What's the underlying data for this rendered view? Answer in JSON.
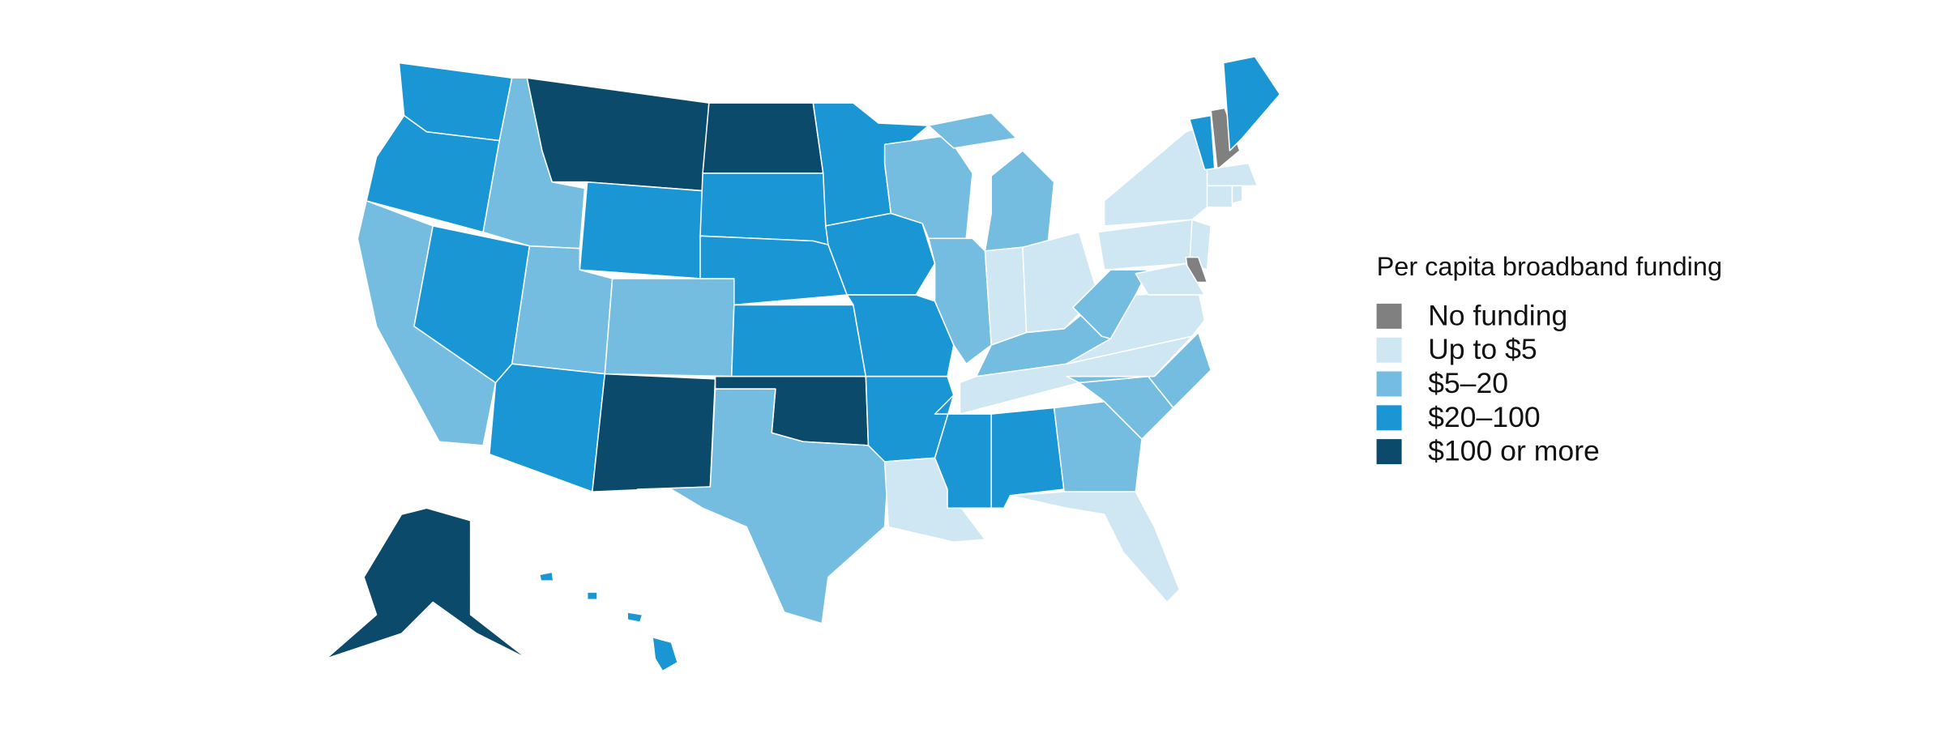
{
  "legend": {
    "title": "Per capita broadband funding",
    "items": [
      {
        "label": "No funding",
        "color": "#808080"
      },
      {
        "label": "Up to $5",
        "color": "#cfe6f3"
      },
      {
        "label": "$5–20",
        "color": "#74bde0"
      },
      {
        "label": "$20–100",
        "color": "#1996d3"
      },
      {
        "label": "$100 or more",
        "color": "#0b4a6a"
      }
    ]
  },
  "state_bins": [
    3,
    3,
    2,
    3,
    2,
    4,
    3,
    2,
    2,
    3,
    4,
    4,
    3,
    3,
    3,
    4,
    2,
    3,
    3,
    3,
    3,
    1,
    2,
    2,
    2,
    1,
    1,
    2,
    1,
    3,
    3,
    2,
    1,
    2,
    2,
    1,
    2,
    1,
    1,
    3,
    0,
    3,
    1,
    1,
    1,
    1,
    0,
    1,
    4,
    3
  ]
}
